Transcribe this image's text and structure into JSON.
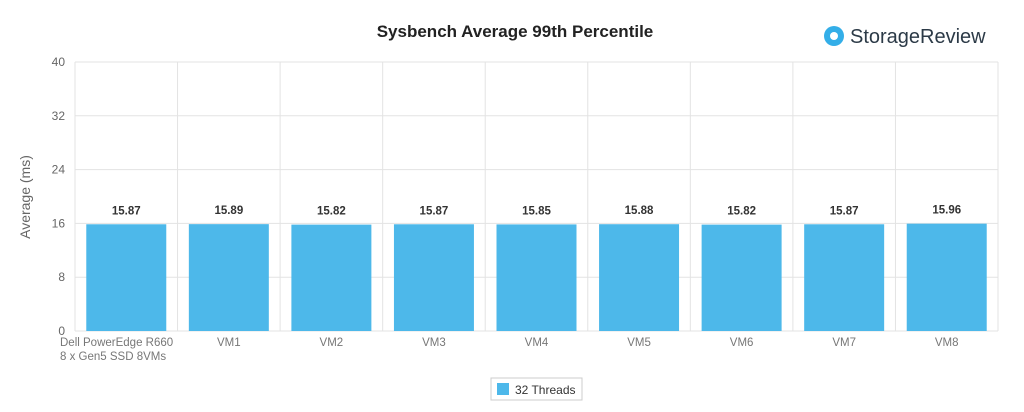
{
  "brand": {
    "name": "StorageReview",
    "logo_icon": "storagereview-logo-icon",
    "accent": "#33aee8"
  },
  "chart_data": {
    "type": "bar",
    "title": "Sysbench Average 99th Percentile",
    "ylabel": "Average (ms)",
    "xlabel": "",
    "ylim": [
      0,
      40
    ],
    "yticks": [
      0,
      8,
      16,
      24,
      32,
      40
    ],
    "grid": true,
    "legend_position": "bottom-center",
    "categories": [
      [
        "Dell PowerEdge R660",
        "8 x Gen5 SSD 8VMs"
      ],
      [
        "VM1"
      ],
      [
        "VM2"
      ],
      [
        "VM3"
      ],
      [
        "VM4"
      ],
      [
        "VM5"
      ],
      [
        "VM6"
      ],
      [
        "VM7"
      ],
      [
        "VM8"
      ]
    ],
    "series": [
      {
        "name": "32 Threads",
        "color": "#4db8ea",
        "values": [
          15.87,
          15.89,
          15.82,
          15.87,
          15.85,
          15.88,
          15.82,
          15.87,
          15.96
        ]
      }
    ]
  }
}
